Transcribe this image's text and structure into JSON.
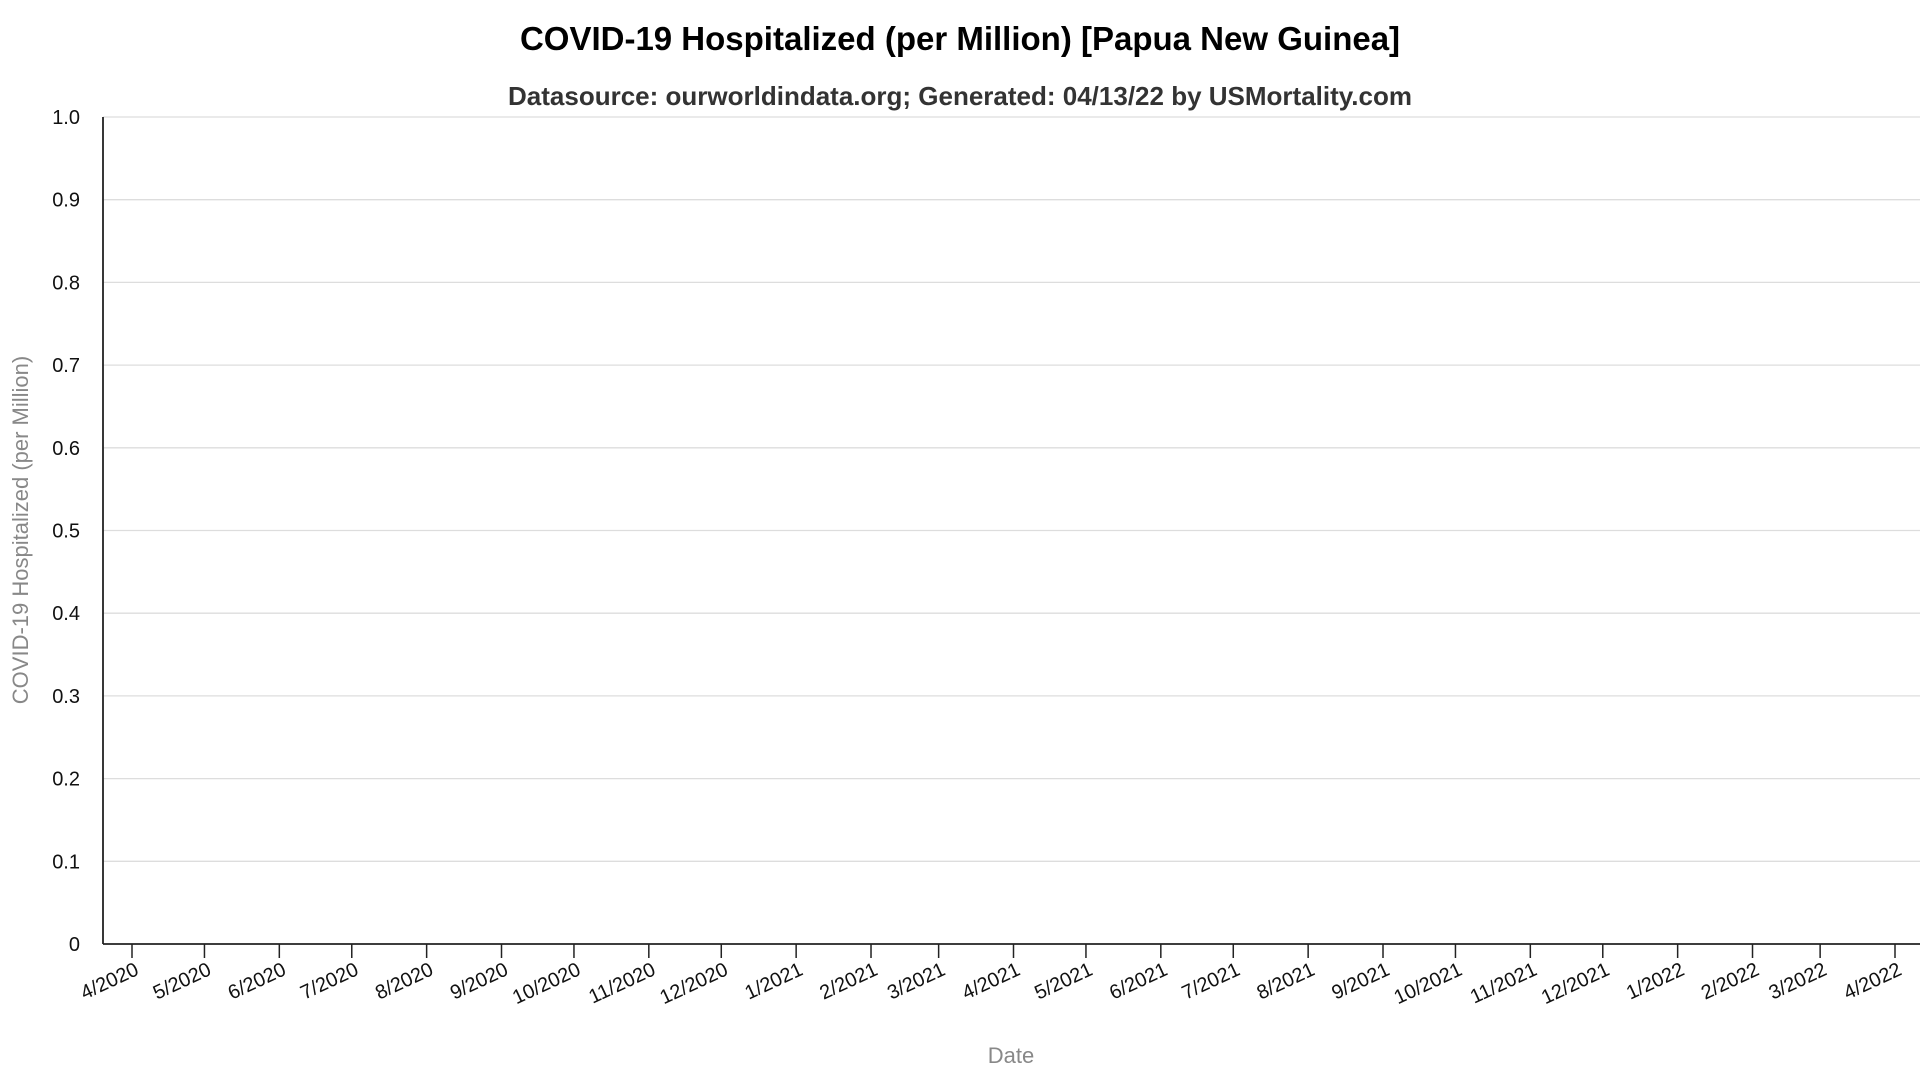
{
  "chart_data": {
    "type": "line",
    "title": "COVID-19 Hospitalized (per Million) [Papua New Guinea]",
    "subtitle": "Datasource: ourworldindata.org; Generated: 04/13/22 by USMortality.com",
    "xlabel": "Date",
    "ylabel": "COVID-19 Hospitalized (per Million)",
    "ylim": [
      0,
      1
    ],
    "y_ticks": [
      "0",
      "0.1",
      "0.2",
      "0.3",
      "0.4",
      "0.5",
      "0.6",
      "0.7",
      "0.8",
      "0.9",
      "1.0"
    ],
    "x_ticks": [
      "4/2020",
      "5/2020",
      "6/2020",
      "7/2020",
      "8/2020",
      "9/2020",
      "10/2020",
      "11/2020",
      "12/2020",
      "1/2021",
      "2/2021",
      "3/2021",
      "4/2021",
      "5/2021",
      "6/2021",
      "7/2021",
      "8/2021",
      "9/2021",
      "10/2021",
      "11/2021",
      "12/2021",
      "1/2022",
      "2/2022",
      "3/2022",
      "4/2022"
    ],
    "grid": true,
    "series": []
  }
}
